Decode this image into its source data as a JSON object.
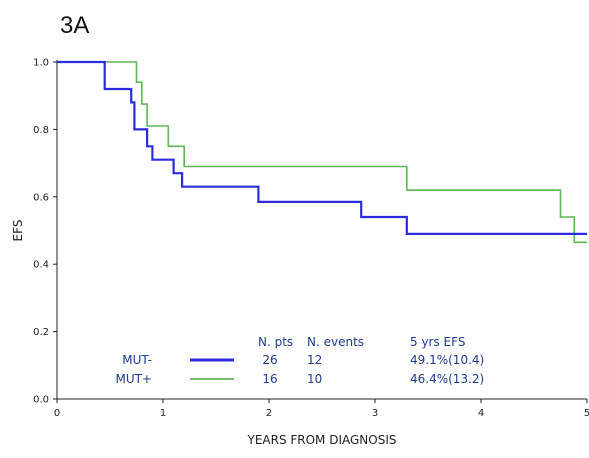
{
  "chart_data": {
    "type": "line",
    "panel_label": "3A",
    "title": "",
    "xlabel": "YEARS FROM DIAGNOSIS",
    "ylabel": "EFS",
    "xlim": [
      0,
      5
    ],
    "ylim": [
      0,
      1
    ],
    "xticks": [
      0,
      1,
      2,
      3,
      4,
      5
    ],
    "yticks": [
      0.0,
      0.2,
      0.4,
      0.6,
      0.8,
      1.0
    ],
    "xtick_labels": [
      "0",
      "1",
      "2",
      "3",
      "4",
      "5"
    ],
    "ytick_labels": [
      "0.0",
      "0.2",
      "0.4",
      "0.6",
      "0.8",
      "1.0"
    ],
    "grid": false,
    "step": true,
    "legend": {
      "position": "bottom-left",
      "header": [
        "N. pts",
        "N. events",
        "5 yrs EFS"
      ],
      "rows": [
        {
          "label": "MUT-",
          "n_pts": "26",
          "n_events": "12",
          "efs": "49.1%(10.4)",
          "color": "#2b2bdf"
        },
        {
          "label": "MUT+",
          "n_pts": "16",
          "n_events": "10",
          "efs": "46.4%(13.2)",
          "color": "#5db653"
        }
      ]
    },
    "series": [
      {
        "name": "MUT-",
        "color": "#2b2bdf",
        "x": [
          0,
          0.45,
          0.45,
          0.7,
          0.7,
          0.73,
          0.73,
          0.85,
          0.85,
          0.9,
          0.9,
          1.1,
          1.1,
          1.18,
          1.18,
          1.9,
          1.9,
          2.87,
          2.87,
          3.3,
          3.3,
          5
        ],
        "y": [
          1.0,
          1.0,
          0.92,
          0.92,
          0.88,
          0.88,
          0.8,
          0.8,
          0.75,
          0.75,
          0.71,
          0.71,
          0.67,
          0.67,
          0.63,
          0.63,
          0.585,
          0.585,
          0.54,
          0.54,
          0.49,
          0.49
        ]
      },
      {
        "name": "MUT+",
        "color": "#5db653",
        "x": [
          0,
          0.75,
          0.75,
          0.8,
          0.8,
          0.85,
          0.85,
          1.05,
          1.05,
          1.2,
          1.2,
          3.3,
          3.3,
          4.75,
          4.75,
          4.88,
          4.88,
          5
        ],
        "y": [
          1.0,
          1.0,
          0.94,
          0.94,
          0.875,
          0.875,
          0.81,
          0.81,
          0.75,
          0.75,
          0.69,
          0.69,
          0.62,
          0.62,
          0.54,
          0.54,
          0.465,
          0.465
        ]
      }
    ]
  }
}
